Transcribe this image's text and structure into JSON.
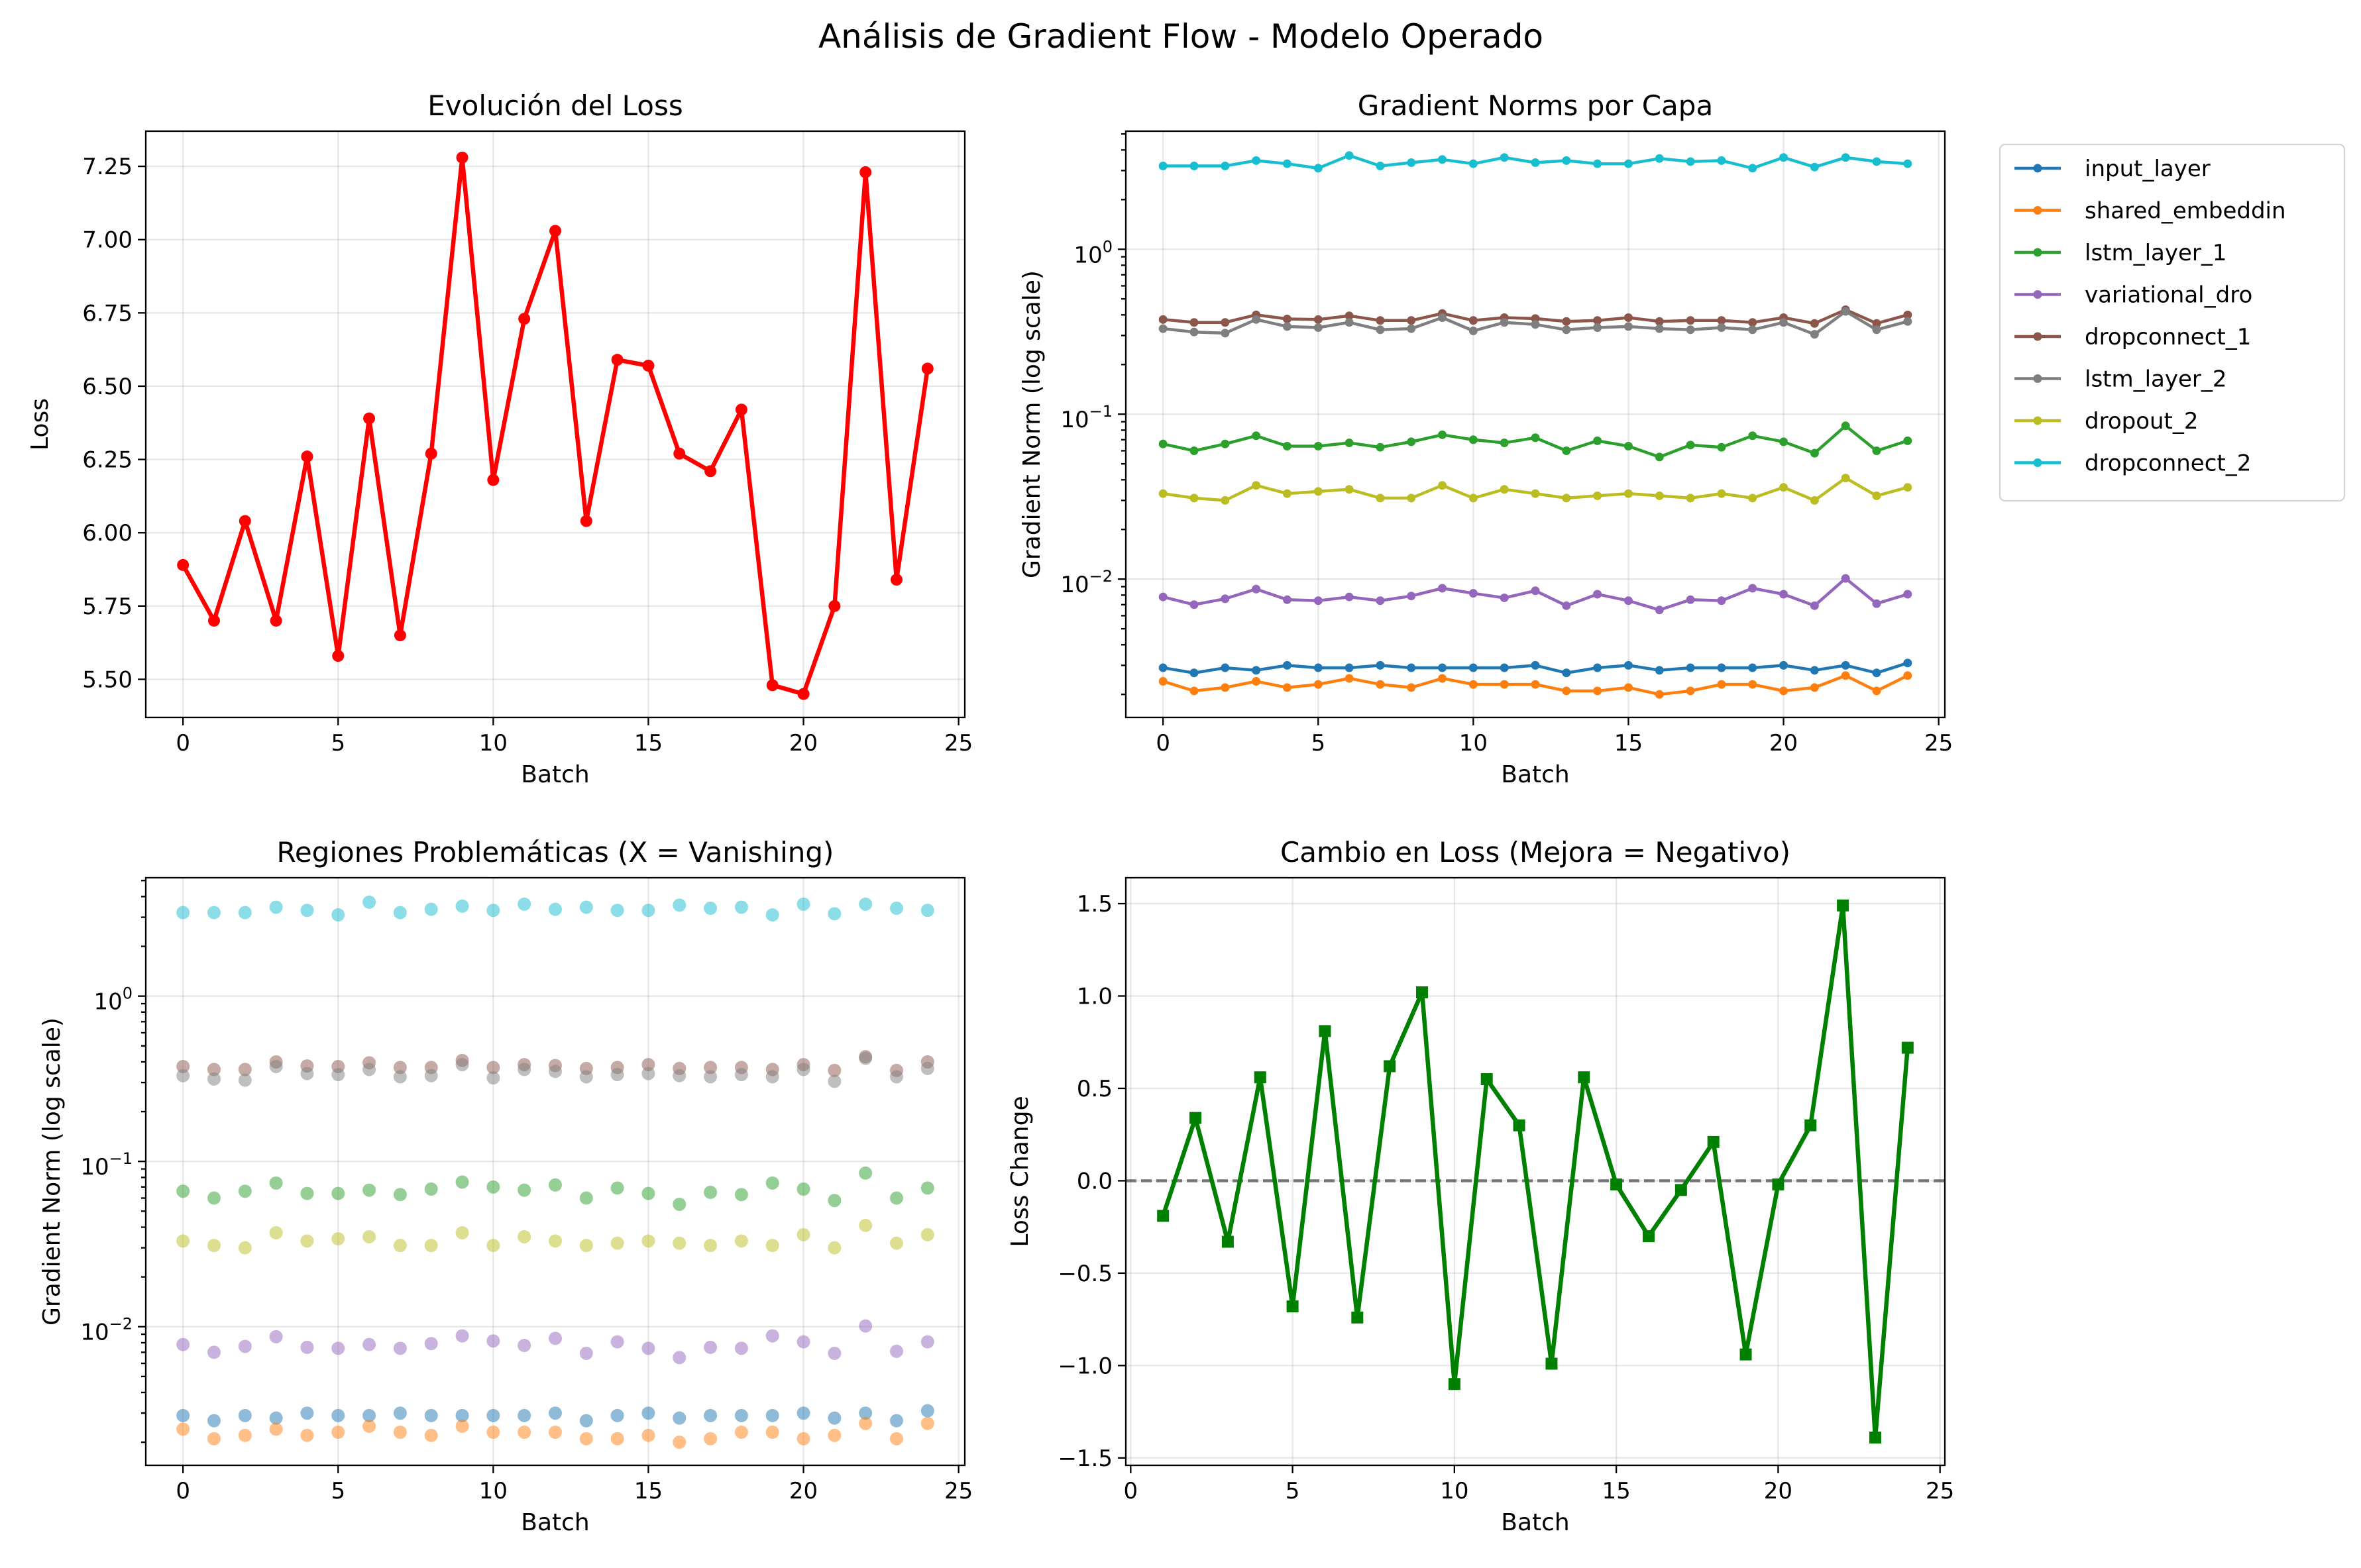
{
  "suptitle": "Análisis de Gradient Flow - Modelo Operado",
  "chart_data": [
    {
      "id": "loss",
      "type": "line",
      "title": "Evolución del Loss",
      "xlabel": "Batch",
      "ylabel": "Loss",
      "xlim": [
        -1.2,
        25.2
      ],
      "ylim": [
        5.37,
        7.37
      ],
      "xticks": [
        0,
        5,
        10,
        15,
        20,
        25
      ],
      "yticks": [
        5.5,
        5.75,
        6.0,
        6.25,
        6.5,
        6.75,
        7.0,
        7.25
      ],
      "ytick_labels": [
        "5.50",
        "5.75",
        "6.00",
        "6.25",
        "6.50",
        "6.75",
        "7.00",
        "7.25"
      ],
      "grid": true,
      "color": "#ff0000",
      "marker": "circle",
      "series": [
        {
          "x": [
            0,
            1,
            2,
            3,
            4,
            5,
            6,
            7,
            8,
            9,
            10,
            11,
            12,
            13,
            14,
            15,
            16,
            17,
            18,
            19,
            20,
            21,
            22,
            23,
            24
          ],
          "values": [
            5.89,
            5.7,
            6.04,
            5.7,
            6.26,
            5.58,
            6.39,
            5.65,
            6.27,
            7.28,
            6.18,
            6.73,
            7.03,
            6.04,
            6.59,
            6.57,
            6.27,
            6.21,
            6.42,
            5.48,
            5.45,
            5.75,
            7.23,
            5.84,
            6.56
          ]
        }
      ]
    },
    {
      "id": "norms",
      "type": "line",
      "title": "Gradient Norms por Capa",
      "xlabel": "Batch",
      "ylabel": "Gradient Norm (log scale)",
      "yscale": "log",
      "xlim": [
        -1.2,
        25.2
      ],
      "ylim": [
        0.00145,
        5.2
      ],
      "xticks": [
        0,
        5,
        10,
        15,
        20,
        25
      ],
      "yticks": [
        0.01,
        0.1,
        1
      ],
      "ytick_labels": [
        {
          "base": "10",
          "exp": "−2"
        },
        {
          "base": "10",
          "exp": "−1"
        },
        {
          "base": "10",
          "exp": "0"
        }
      ],
      "grid": true,
      "legend": "outside-right",
      "marker": "circle",
      "series": [
        {
          "name": "input_layer",
          "color": "#1f77b4",
          "values": [
            0.0029,
            0.0027,
            0.0029,
            0.0028,
            0.003,
            0.0029,
            0.0029,
            0.003,
            0.0029,
            0.0029,
            0.0029,
            0.0029,
            0.003,
            0.0027,
            0.0029,
            0.003,
            0.0028,
            0.0029,
            0.0029,
            0.0029,
            0.003,
            0.0028,
            0.003,
            0.0027,
            0.0031
          ]
        },
        {
          "name": "shared_embeddin",
          "color": "#ff7f0e",
          "values": [
            0.0024,
            0.0021,
            0.0022,
            0.0024,
            0.0022,
            0.0023,
            0.0025,
            0.0023,
            0.0022,
            0.0025,
            0.0023,
            0.0023,
            0.0023,
            0.0021,
            0.0021,
            0.0022,
            0.002,
            0.0021,
            0.0023,
            0.0023,
            0.0021,
            0.0022,
            0.0026,
            0.0021,
            0.0026
          ]
        },
        {
          "name": "lstm_layer_1",
          "color": "#2ca02c",
          "values": [
            0.066,
            0.06,
            0.066,
            0.074,
            0.064,
            0.064,
            0.067,
            0.063,
            0.068,
            0.075,
            0.07,
            0.067,
            0.072,
            0.06,
            0.069,
            0.064,
            0.055,
            0.065,
            0.063,
            0.074,
            0.068,
            0.058,
            0.085,
            0.06,
            0.069
          ]
        },
        {
          "name": "variational_dro",
          "color": "#9467bd",
          "values": [
            0.0078,
            0.007,
            0.0076,
            0.0087,
            0.0075,
            0.0074,
            0.0078,
            0.0074,
            0.0079,
            0.0088,
            0.0082,
            0.0077,
            0.0085,
            0.0069,
            0.0081,
            0.0074,
            0.0065,
            0.0075,
            0.0074,
            0.0088,
            0.0081,
            0.0069,
            0.0101,
            0.0071,
            0.0081
          ]
        },
        {
          "name": "dropconnect_1",
          "color": "#8c564b",
          "values": [
            0.375,
            0.36,
            0.36,
            0.4,
            0.378,
            0.375,
            0.395,
            0.37,
            0.37,
            0.408,
            0.37,
            0.385,
            0.38,
            0.365,
            0.37,
            0.385,
            0.365,
            0.37,
            0.37,
            0.36,
            0.385,
            0.355,
            0.43,
            0.355,
            0.4
          ]
        },
        {
          "name": "lstm_layer_2",
          "color": "#7f7f7f",
          "values": [
            0.33,
            0.315,
            0.31,
            0.375,
            0.34,
            0.335,
            0.36,
            0.325,
            0.33,
            0.385,
            0.32,
            0.36,
            0.35,
            0.325,
            0.335,
            0.34,
            0.33,
            0.325,
            0.335,
            0.325,
            0.36,
            0.305,
            0.42,
            0.325,
            0.365
          ]
        },
        {
          "name": "dropout_2",
          "color": "#bcbd22",
          "values": [
            0.033,
            0.031,
            0.03,
            0.037,
            0.033,
            0.034,
            0.035,
            0.031,
            0.031,
            0.037,
            0.031,
            0.035,
            0.033,
            0.031,
            0.032,
            0.033,
            0.032,
            0.031,
            0.033,
            0.031,
            0.036,
            0.03,
            0.041,
            0.032,
            0.036
          ]
        },
        {
          "name": "dropconnect_2",
          "color": "#17becf",
          "values": [
            3.2,
            3.2,
            3.2,
            3.45,
            3.3,
            3.1,
            3.7,
            3.2,
            3.35,
            3.5,
            3.3,
            3.6,
            3.35,
            3.45,
            3.3,
            3.3,
            3.55,
            3.4,
            3.45,
            3.1,
            3.6,
            3.15,
            3.6,
            3.4,
            3.3
          ]
        }
      ]
    },
    {
      "id": "regions",
      "type": "scatter",
      "title": "Regiones Problemáticas (X = Vanishing)",
      "xlabel": "Batch",
      "ylabel": "Gradient Norm (log scale)",
      "yscale": "log",
      "xlim": [
        -1.2,
        25.2
      ],
      "ylim": [
        0.00145,
        5.2
      ],
      "xticks": [
        0,
        5,
        10,
        15,
        20,
        25
      ],
      "yticks": [
        0.01,
        0.1,
        1
      ],
      "ytick_labels": [
        {
          "base": "10",
          "exp": "−2"
        },
        {
          "base": "10",
          "exp": "−1"
        },
        {
          "base": "10",
          "exp": "0"
        }
      ],
      "grid": true,
      "marker_alpha": 0.5,
      "series_from": "norms"
    },
    {
      "id": "change",
      "type": "line",
      "title": "Cambio en Loss (Mejora = Negativo)",
      "xlabel": "Batch",
      "ylabel": "Loss Change",
      "xlim": [
        -0.15,
        25.15
      ],
      "ylim": [
        -1.54,
        1.64
      ],
      "xticks": [
        0,
        5,
        10,
        15,
        20,
        25
      ],
      "yticks": [
        -1.5,
        -1.0,
        -0.5,
        0.0,
        0.5,
        1.0,
        1.5
      ],
      "ytick_labels": [
        "−1.5",
        "−1.0",
        "−0.5",
        "0.0",
        "0.5",
        "1.0",
        "1.5"
      ],
      "grid": true,
      "color": "#008000",
      "marker": "square",
      "reference_line": {
        "y": 0,
        "style": "dashed",
        "color": "#000000"
      },
      "series": [
        {
          "x": [
            1,
            2,
            3,
            4,
            5,
            6,
            7,
            8,
            9,
            10,
            11,
            12,
            13,
            14,
            15,
            16,
            17,
            18,
            19,
            20,
            21,
            22,
            23,
            24
          ],
          "values": [
            -0.19,
            0.34,
            -0.33,
            0.56,
            -0.68,
            0.81,
            -0.74,
            0.62,
            1.02,
            -1.1,
            0.55,
            0.3,
            -0.99,
            0.56,
            -0.02,
            -0.3,
            -0.05,
            0.21,
            -0.94,
            -0.02,
            0.3,
            1.49,
            -1.39,
            0.72
          ]
        }
      ]
    }
  ]
}
